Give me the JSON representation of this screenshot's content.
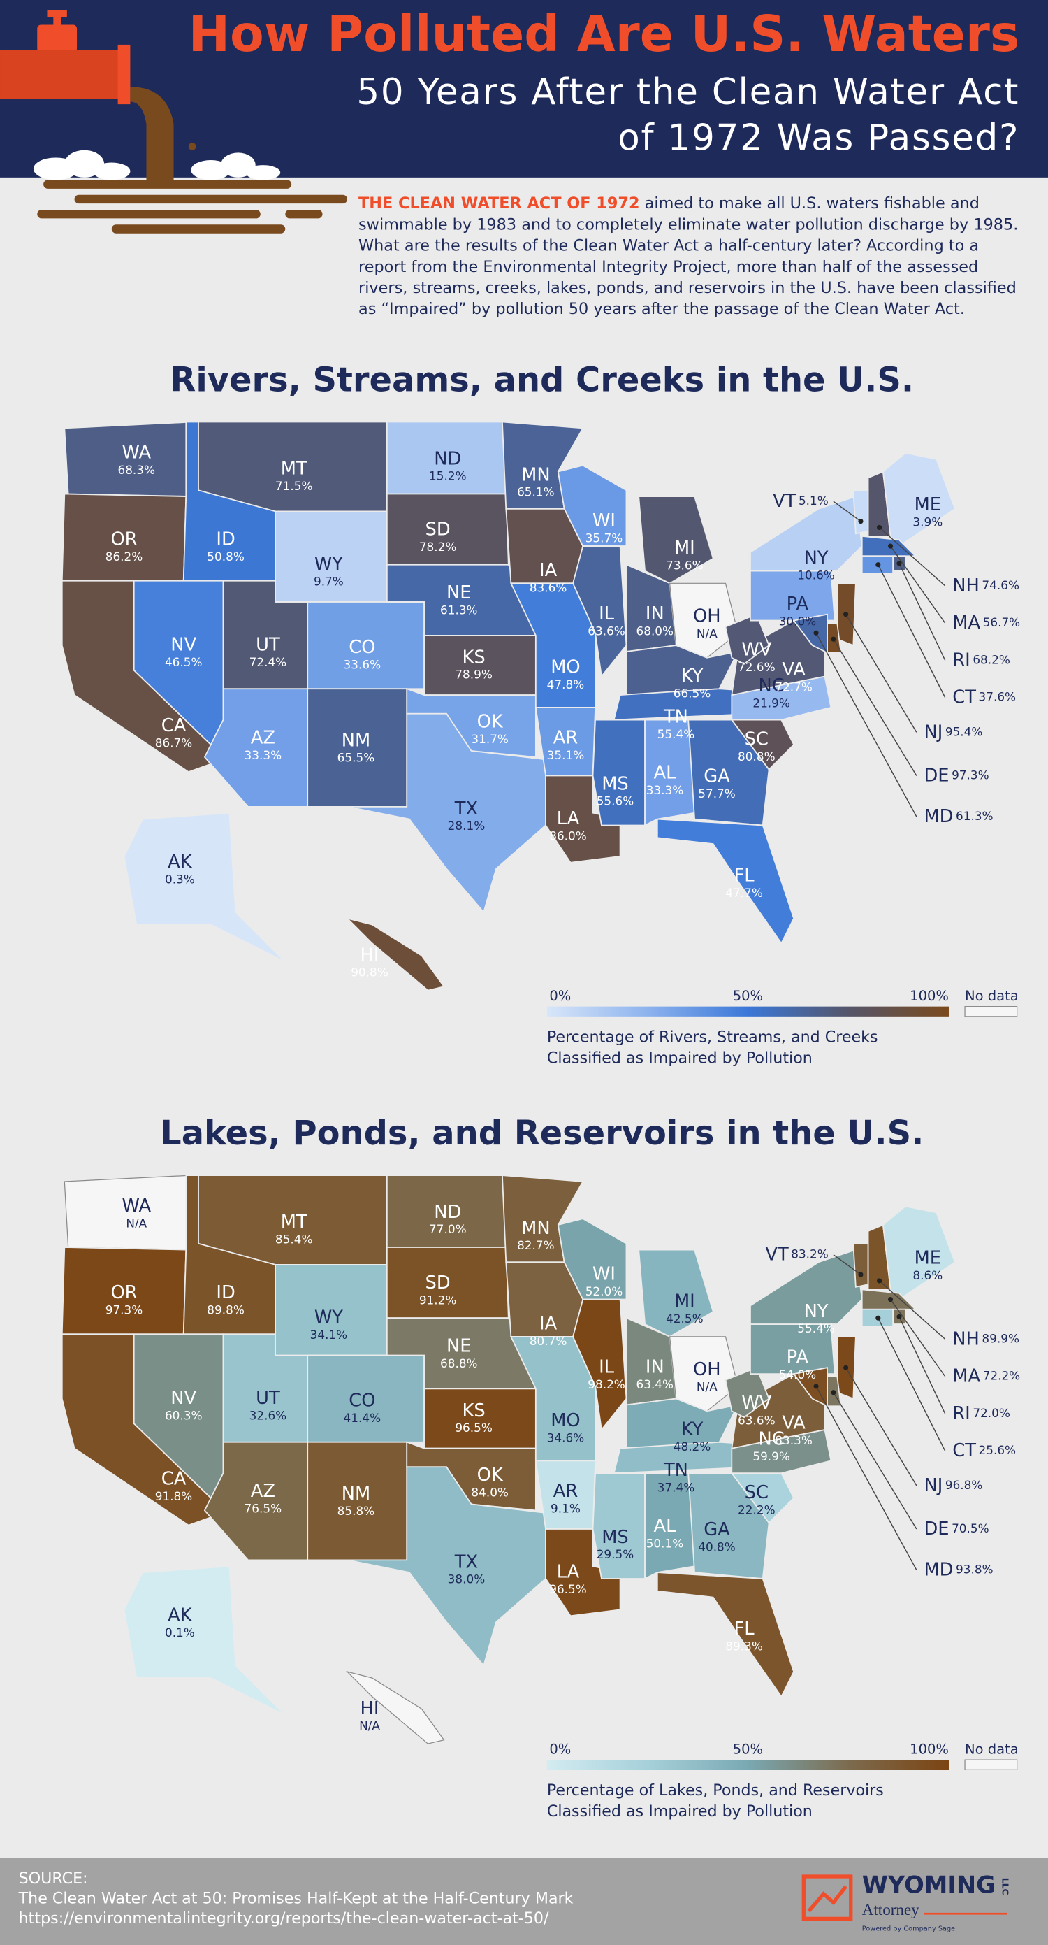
{
  "header": {
    "title": "How Polluted Are U.S. Waters",
    "subtitle_lines": [
      "50 Years After the Clean Water Act",
      "of 1972 Was Passed?"
    ]
  },
  "intro": {
    "lead": "THE CLEAN WATER ACT OF 1972",
    "body": "aimed to make all U.S. waters fishable and swimmable by 1983 and to completely eliminate water pollution discharge by 1985. What are the results of the Clean Water Act a half-century later? According to a report from the Environmental Integrity Project, more than half of the assessed rivers, streams, creeks, lakes, ponds, and reservoirs in the U.S. have been classified as “Impaired” by pollution 50 years after the passage of the Clean Water Act."
  },
  "maps": [
    {
      "title": "Rivers, Streams, and Creeks in the U.S.",
      "colors": [
        "#d8e6f9",
        "#8db3ee",
        "#3b78d8",
        "#55556a",
        "#7b4a1c"
      ],
      "states": [
        {
          "abbr": "WA",
          "value": 68.3,
          "label": "68.3%"
        },
        {
          "abbr": "OR",
          "value": 86.2,
          "label": "86.2%"
        },
        {
          "abbr": "CA",
          "value": 86.7,
          "label": "86.7%"
        },
        {
          "abbr": "ID",
          "value": 50.8,
          "label": "50.8%"
        },
        {
          "abbr": "NV",
          "value": 46.5,
          "label": "46.5%"
        },
        {
          "abbr": "UT",
          "value": 72.4,
          "label": "72.4%"
        },
        {
          "abbr": "AZ",
          "value": 33.3,
          "label": "33.3%"
        },
        {
          "abbr": "MT",
          "value": 71.5,
          "label": "71.5%"
        },
        {
          "abbr": "WY",
          "value": 9.7,
          "label": "9.7%"
        },
        {
          "abbr": "CO",
          "value": 33.6,
          "label": "33.6%"
        },
        {
          "abbr": "NM",
          "value": 65.5,
          "label": "65.5%"
        },
        {
          "abbr": "ND",
          "value": 15.2,
          "label": "15.2%"
        },
        {
          "abbr": "SD",
          "value": 78.2,
          "label": "78.2%"
        },
        {
          "abbr": "NE",
          "value": 61.3,
          "label": "61.3%"
        },
        {
          "abbr": "KS",
          "value": 78.9,
          "label": "78.9%"
        },
        {
          "abbr": "OK",
          "value": 31.7,
          "label": "31.7%"
        },
        {
          "abbr": "TX",
          "value": 28.1,
          "label": "28.1%"
        },
        {
          "abbr": "MN",
          "value": 65.1,
          "label": "65.1%"
        },
        {
          "abbr": "IA",
          "value": 83.6,
          "label": "83.6%"
        },
        {
          "abbr": "MO",
          "value": 47.8,
          "label": "47.8%"
        },
        {
          "abbr": "AR",
          "value": 35.1,
          "label": "35.1%"
        },
        {
          "abbr": "LA",
          "value": 86.0,
          "label": "86.0%"
        },
        {
          "abbr": "WI",
          "value": 35.7,
          "label": "35.7%"
        },
        {
          "abbr": "IL",
          "value": 63.6,
          "label": "63.6%"
        },
        {
          "abbr": "MI",
          "value": 73.6,
          "label": "73.6%"
        },
        {
          "abbr": "IN",
          "value": 68.0,
          "label": "68.0%"
        },
        {
          "abbr": "OH",
          "value": null,
          "label": "N/A"
        },
        {
          "abbr": "KY",
          "value": 66.5,
          "label": "66.5%"
        },
        {
          "abbr": "TN",
          "value": 55.4,
          "label": "55.4%"
        },
        {
          "abbr": "MS",
          "value": 55.6,
          "label": "55.6%"
        },
        {
          "abbr": "AL",
          "value": 33.3,
          "label": "33.3%"
        },
        {
          "abbr": "GA",
          "value": 57.7,
          "label": "57.7%"
        },
        {
          "abbr": "FL",
          "value": 47.7,
          "label": "47.7%"
        },
        {
          "abbr": "SC",
          "value": 80.8,
          "label": "80.8%"
        },
        {
          "abbr": "NC",
          "value": 21.9,
          "label": "21.9%"
        },
        {
          "abbr": "VA",
          "value": 72.7,
          "label": "72.7%"
        },
        {
          "abbr": "WV",
          "value": 72.6,
          "label": "72.6%"
        },
        {
          "abbr": "PA",
          "value": 30.0,
          "label": "30.0%"
        },
        {
          "abbr": "NY",
          "value": 10.6,
          "label": "10.6%"
        },
        {
          "abbr": "VT",
          "value": 5.1,
          "label": "5.1%"
        },
        {
          "abbr": "NH",
          "value": 74.6,
          "label": "74.6%"
        },
        {
          "abbr": "ME",
          "value": 3.9,
          "label": "3.9%"
        },
        {
          "abbr": "MA",
          "value": 56.7,
          "label": "56.7%"
        },
        {
          "abbr": "RI",
          "value": 68.2,
          "label": "68.2%"
        },
        {
          "abbr": "CT",
          "value": 37.6,
          "label": "37.6%"
        },
        {
          "abbr": "NJ",
          "value": 95.4,
          "label": "95.4%"
        },
        {
          "abbr": "DE",
          "value": 97.3,
          "label": "97.3%"
        },
        {
          "abbr": "MD",
          "value": 61.3,
          "label": "61.3%"
        },
        {
          "abbr": "AK",
          "value": 0.3,
          "label": "0.3%"
        },
        {
          "abbr": "HI",
          "value": 90.8,
          "label": "90.8%"
        }
      ],
      "legend": {
        "range": [
          0,
          100
        ],
        "ticks": [
          {
            "value": 0,
            "label": "0%"
          },
          {
            "value": 50,
            "label": "50%"
          },
          {
            "value": 100,
            "label": "100%"
          }
        ],
        "no_data": "No data",
        "caption_lines": [
          "Percentage of Rivers, Streams, and Creeks",
          "Classified as Impaired by Pollution"
        ]
      }
    },
    {
      "title": "Lakes, Ponds, and Reservoirs in the U.S.",
      "colors": [
        "#d3ecf1",
        "#a6d0da",
        "#7aa9b3",
        "#7c6b4e",
        "#7c4412"
      ],
      "states": [
        {
          "abbr": "WA",
          "value": null,
          "label": "N/A"
        },
        {
          "abbr": "OR",
          "value": 97.3,
          "label": "97.3%"
        },
        {
          "abbr": "CA",
          "value": 91.8,
          "label": "91.8%"
        },
        {
          "abbr": "ID",
          "value": 89.8,
          "label": "89.8%"
        },
        {
          "abbr": "NV",
          "value": 60.3,
          "label": "60.3%"
        },
        {
          "abbr": "UT",
          "value": 32.6,
          "label": "32.6%"
        },
        {
          "abbr": "AZ",
          "value": 76.5,
          "label": "76.5%"
        },
        {
          "abbr": "MT",
          "value": 85.4,
          "label": "85.4%"
        },
        {
          "abbr": "WY",
          "value": 34.1,
          "label": "34.1%"
        },
        {
          "abbr": "CO",
          "value": 41.4,
          "label": "41.4%"
        },
        {
          "abbr": "NM",
          "value": 85.8,
          "label": "85.8%"
        },
        {
          "abbr": "ND",
          "value": 77.0,
          "label": "77.0%"
        },
        {
          "abbr": "SD",
          "value": 91.2,
          "label": "91.2%"
        },
        {
          "abbr": "NE",
          "value": 68.8,
          "label": "68.8%"
        },
        {
          "abbr": "KS",
          "value": 96.5,
          "label": "96.5%"
        },
        {
          "abbr": "OK",
          "value": 84.0,
          "label": "84.0%"
        },
        {
          "abbr": "TX",
          "value": 38.0,
          "label": "38.0%"
        },
        {
          "abbr": "MN",
          "value": 82.7,
          "label": "82.7%"
        },
        {
          "abbr": "IA",
          "value": 80.7,
          "label": "80.7%"
        },
        {
          "abbr": "MO",
          "value": 34.6,
          "label": "34.6%"
        },
        {
          "abbr": "AR",
          "value": 9.1,
          "label": "9.1%"
        },
        {
          "abbr": "LA",
          "value": 96.5,
          "label": "96.5%"
        },
        {
          "abbr": "WI",
          "value": 52.0,
          "label": "52.0%"
        },
        {
          "abbr": "IL",
          "value": 98.2,
          "label": "98.2%"
        },
        {
          "abbr": "MI",
          "value": 42.5,
          "label": "42.5%"
        },
        {
          "abbr": "IN",
          "value": 63.4,
          "label": "63.4%"
        },
        {
          "abbr": "OH",
          "value": null,
          "label": "N/A"
        },
        {
          "abbr": "KY",
          "value": 48.2,
          "label": "48.2%"
        },
        {
          "abbr": "TN",
          "value": 37.4,
          "label": "37.4%"
        },
        {
          "abbr": "MS",
          "value": 29.5,
          "label": "29.5%"
        },
        {
          "abbr": "AL",
          "value": 50.1,
          "label": "50.1%"
        },
        {
          "abbr": "GA",
          "value": 40.8,
          "label": "40.8%"
        },
        {
          "abbr": "FL",
          "value": 89.3,
          "label": "89.3%"
        },
        {
          "abbr": "SC",
          "value": 22.2,
          "label": "22.2%"
        },
        {
          "abbr": "NC",
          "value": 59.9,
          "label": "59.9%"
        },
        {
          "abbr": "VA",
          "value": 83.3,
          "label": "83.3%"
        },
        {
          "abbr": "WV",
          "value": 63.6,
          "label": "63.6%"
        },
        {
          "abbr": "PA",
          "value": 54.0,
          "label": "54.0%"
        },
        {
          "abbr": "NY",
          "value": 55.4,
          "label": "55.4%"
        },
        {
          "abbr": "VT",
          "value": 83.2,
          "label": "83.2%"
        },
        {
          "abbr": "NH",
          "value": 89.9,
          "label": "89.9%"
        },
        {
          "abbr": "ME",
          "value": 8.6,
          "label": "8.6%"
        },
        {
          "abbr": "MA",
          "value": 72.2,
          "label": "72.2%"
        },
        {
          "abbr": "RI",
          "value": 72.0,
          "label": "72.0%"
        },
        {
          "abbr": "CT",
          "value": 25.6,
          "label": "25.6%"
        },
        {
          "abbr": "NJ",
          "value": 96.8,
          "label": "96.8%"
        },
        {
          "abbr": "DE",
          "value": 70.5,
          "label": "70.5%"
        },
        {
          "abbr": "MD",
          "value": 93.8,
          "label": "93.8%"
        },
        {
          "abbr": "AK",
          "value": 0.1,
          "label": "0.1%"
        },
        {
          "abbr": "HI",
          "value": null,
          "label": "N/A"
        }
      ],
      "legend": {
        "range": [
          0,
          100
        ],
        "ticks": [
          {
            "value": 0,
            "label": "0%"
          },
          {
            "value": 50,
            "label": "50%"
          },
          {
            "value": 100,
            "label": "100%"
          }
        ],
        "no_data": "No data",
        "caption_lines": [
          "Percentage of Lakes, Ponds, and Reservoirs",
          "Classified as Impaired by Pollution"
        ]
      }
    }
  ],
  "footer": {
    "source_label": "SOURCE:",
    "source_title": "The Clean Water Act at 50: Promises Half-Kept at the Half-Century Mark",
    "source_url": "https://environmentalintegrity.org/reports/the-clean-water-act-at-50/",
    "logo": {
      "name": "WYOMING",
      "suffix": "LLC",
      "line2": "Attorney",
      "tagline": "Powered by Company Sage"
    }
  }
}
